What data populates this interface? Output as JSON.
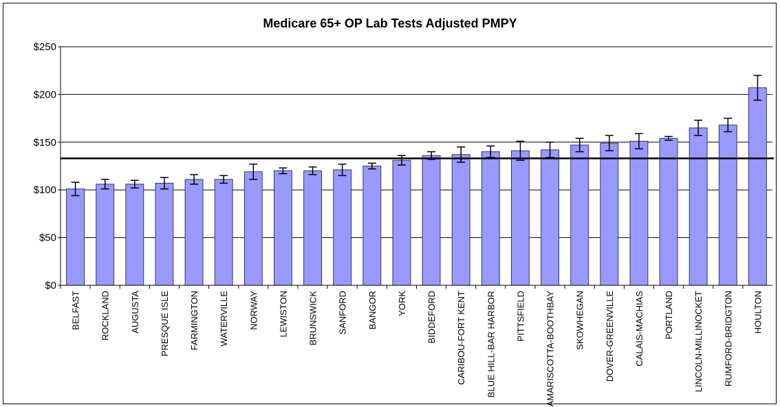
{
  "chart_data": {
    "type": "bar",
    "title": "Medicare 65+ OP Lab Tests Adjusted PMPY",
    "categories": [
      "BELFAST",
      "ROCKLAND",
      "AUGUSTA",
      "PRESQUE ISLE",
      "FARMINGTON",
      "WATERVILLE",
      "NORWAY",
      "LEWISTON",
      "BRUNSWICK",
      "SANFORD",
      "BANGOR",
      "YORK",
      "BIDDEFORD",
      "CARIBOU-FORT KENT",
      "BLUE HILL-BAR HARBOR",
      "PITTSFIELD",
      "DAMARISCOTTA-BOOTHBAY",
      "SKOWHEGAN",
      "DOVER-GREENVILLE",
      "CALAIS-MACHIAS",
      "PORTLAND",
      "LINCOLN-MILLINOCKET",
      "RUMFORD-BRIDGTON",
      "HOULTON"
    ],
    "values": [
      101,
      106,
      106,
      107,
      111,
      111,
      119,
      120,
      120,
      121,
      125,
      131,
      136,
      137,
      140,
      141,
      142,
      147,
      149,
      151,
      154,
      165,
      168,
      207
    ],
    "errors": [
      7,
      5,
      4,
      6,
      5,
      4,
      8,
      3,
      4,
      6,
      3,
      5,
      4,
      8,
      6,
      10,
      8,
      7,
      8,
      8,
      2,
      8,
      7,
      13
    ],
    "reference_line": 133,
    "color": "#9999ff",
    "ylim": [
      0,
      250
    ],
    "yticks": [
      {
        "value": 0,
        "label": "$0"
      },
      {
        "value": 50,
        "label": "$50"
      },
      {
        "value": 100,
        "label": "$100"
      },
      {
        "value": 150,
        "label": "$150"
      },
      {
        "value": 200,
        "label": "$200"
      },
      {
        "value": 250,
        "label": "$250"
      }
    ],
    "grid": true
  }
}
